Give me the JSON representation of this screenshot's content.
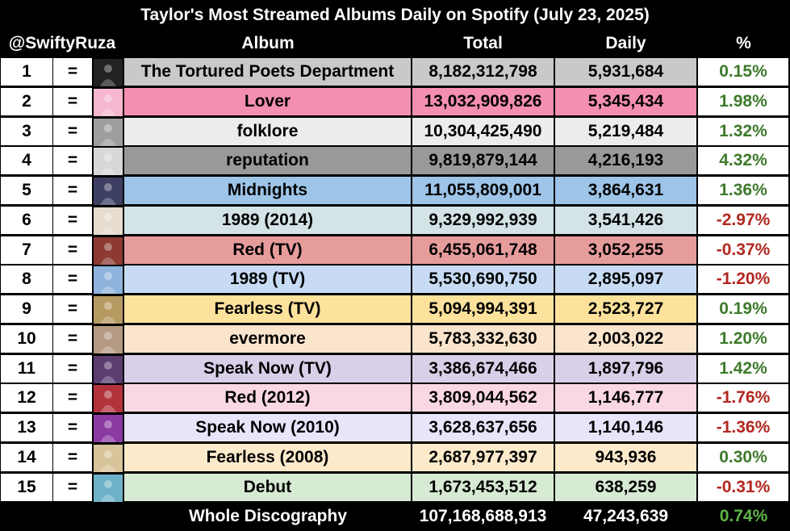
{
  "chart_data": {
    "type": "table",
    "title": "Taylor's Most Streamed Albums Daily on Spotify (July 23, 2025)",
    "handle": "@SwiftyRuza",
    "columns": [
      "Album",
      "Total",
      "Daily",
      "%"
    ],
    "rows": [
      {
        "rank": "1",
        "change": "=",
        "album": "The Tortured Poets Department",
        "total": "8,182,312,798",
        "daily": "5,931,684",
        "pct": "0.15%",
        "row_color": "#c9c9c9",
        "cover": "#222222"
      },
      {
        "rank": "2",
        "change": "=",
        "album": "Lover",
        "total": "13,032,909,826",
        "daily": "5,345,434",
        "pct": "1.98%",
        "row_color": "#f48fb1",
        "cover": "#f6b6d0"
      },
      {
        "rank": "3",
        "change": "=",
        "album": "folklore",
        "total": "10,304,425,490",
        "daily": "5,219,484",
        "pct": "1.32%",
        "row_color": "#ececec",
        "cover": "#9e9e9e"
      },
      {
        "rank": "4",
        "change": "=",
        "album": "reputation",
        "total": "9,819,879,144",
        "daily": "4,216,193",
        "pct": "4.32%",
        "row_color": "#999999",
        "cover": "#d8d8d8"
      },
      {
        "rank": "5",
        "change": "=",
        "album": "Midnights",
        "total": "11,055,809,001",
        "daily": "3,864,631",
        "pct": "1.36%",
        "row_color": "#9ec4e8",
        "cover": "#3d3f63"
      },
      {
        "rank": "6",
        "change": "=",
        "album": "1989 (2014)",
        "total": "9,329,992,939",
        "daily": "3,541,426",
        "pct": "-2.97%",
        "row_color": "#d3e3e6",
        "cover": "#e6ddd0"
      },
      {
        "rank": "7",
        "change": "=",
        "album": "Red (TV)",
        "total": "6,455,061,748",
        "daily": "3,052,255",
        "pct": "-0.37%",
        "row_color": "#e79c9c",
        "cover": "#8c3a32"
      },
      {
        "rank": "8",
        "change": "=",
        "album": "1989 (TV)",
        "total": "5,530,690,750",
        "daily": "2,895,097",
        "pct": "-1.20%",
        "row_color": "#c7dcf4",
        "cover": "#8fb4dc"
      },
      {
        "rank": "9",
        "change": "=",
        "album": "Fearless (TV)",
        "total": "5,094,994,391",
        "daily": "2,523,727",
        "pct": "0.19%",
        "row_color": "#fde29c",
        "cover": "#b69a62"
      },
      {
        "rank": "10",
        "change": "=",
        "album": "evermore",
        "total": "5,783,332,630",
        "daily": "2,003,022",
        "pct": "1.20%",
        "row_color": "#fbe4cc",
        "cover": "#b49a82"
      },
      {
        "rank": "11",
        "change": "=",
        "album": "Speak Now (TV)",
        "total": "3,386,674,466",
        "daily": "1,897,796",
        "pct": "1.42%",
        "row_color": "#d8d0e8",
        "cover": "#5b3d70"
      },
      {
        "rank": "12",
        "change": "=",
        "album": "Red (2012)",
        "total": "3,809,044,562",
        "daily": "1,146,777",
        "pct": "-1.76%",
        "row_color": "#fad8e2",
        "cover": "#b2333c"
      },
      {
        "rank": "13",
        "change": "=",
        "album": "Speak Now (2010)",
        "total": "3,628,637,656",
        "daily": "1,140,146",
        "pct": "-1.36%",
        "row_color": "#e8e4fa",
        "cover": "#8b3aa2"
      },
      {
        "rank": "14",
        "change": "=",
        "album": "Fearless (2008)",
        "total": "2,687,977,397",
        "daily": "943,936",
        "pct": "0.30%",
        "row_color": "#fdeacb",
        "cover": "#d7c49a"
      },
      {
        "rank": "15",
        "change": "=",
        "album": "Debut",
        "total": "1,673,453,512",
        "daily": "638,259",
        "pct": "-0.31%",
        "row_color": "#d7ead3",
        "cover": "#6fb2c8"
      }
    ],
    "total_row": {
      "label": "Whole Discography",
      "total": "107,168,688,913",
      "daily": "47,243,639",
      "pct": "0.74%"
    }
  },
  "colors": {
    "positive": "#3d7a2b",
    "negative": "#b1271e",
    "header_bg": "#000000",
    "header_text": "#ffffff"
  }
}
